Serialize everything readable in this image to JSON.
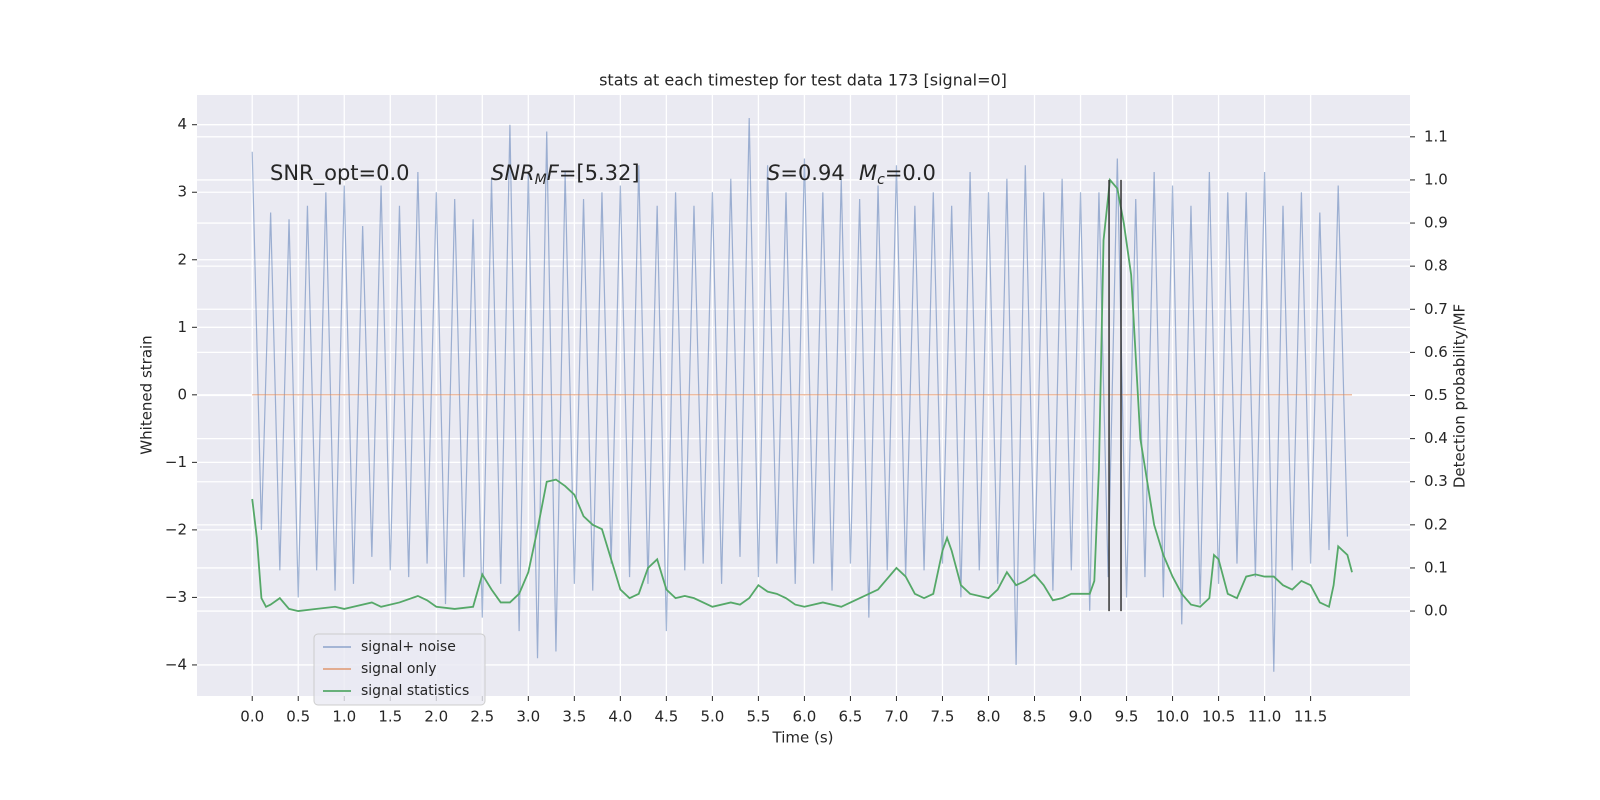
{
  "chart_data": {
    "type": "line",
    "title": "stats at each timestep for test data 173 [signal=0]",
    "xlabel": "Time (s)",
    "ylabel": "Whitened strain",
    "y2label": "Detection probability/MF",
    "xlim": [
      -0.6,
      12.58
    ],
    "ylim": [
      -4.46,
      4.44
    ],
    "y2lim": [
      -0.197,
      1.197
    ],
    "xticks": [
      {
        "value": 0,
        "label": "0.0"
      },
      0.5,
      {
        "value": 1,
        "label": "1.0"
      },
      1.5,
      {
        "value": 2,
        "label": "2.0"
      },
      2.5,
      {
        "value": 3,
        "label": "3.0"
      },
      3.5,
      {
        "value": 4,
        "label": "4.0"
      },
      4.5,
      {
        "value": 5,
        "label": "5.0"
      },
      5.5,
      {
        "value": 6,
        "label": "6.0"
      },
      6.5,
      {
        "value": 7,
        "label": "7.0"
      },
      7.5,
      {
        "value": 8,
        "label": "8.0"
      },
      8.5,
      {
        "value": 9,
        "label": "9.0"
      },
      9.5,
      {
        "value": 10,
        "label": "10.0"
      },
      10.5,
      {
        "value": 11,
        "label": "11.0"
      },
      11.5
    ],
    "yticks": [
      {
        "value": -4,
        "label": "−4"
      },
      {
        "value": -3,
        "label": "−3"
      },
      {
        "value": -2,
        "label": "−2"
      },
      {
        "value": -1,
        "label": "−1"
      },
      0,
      1,
      2,
      3,
      4
    ],
    "y2ticks": [
      {
        "value": 0,
        "label": "0.0"
      },
      0.1,
      0.2,
      0.3,
      0.4,
      0.5,
      0.6,
      0.7,
      0.8,
      0.9,
      {
        "value": 1,
        "label": "1.0"
      },
      1.1
    ],
    "grid": true,
    "legend": "lower left",
    "annotations": [
      [
        {
          "text": "SNR_opt=0.0"
        }
      ],
      [
        {
          "text": "SNR",
          "italic": true
        },
        {
          "text": "M",
          "italic": true,
          "sub": true
        },
        {
          "text": "F",
          "italic": true
        },
        {
          "text": "=[5.32]"
        }
      ],
      [
        {
          "text": "S",
          "italic": true
        },
        {
          "text": "=0.94"
        }
      ],
      [
        {
          "text": "M",
          "italic": true
        },
        {
          "text": "c",
          "italic": true,
          "sub": true
        },
        {
          "text": "=0.0"
        }
      ]
    ],
    "series": [
      {
        "name": "signal+ noise",
        "color": "#4c72b0",
        "opacity": 0.5,
        "x": [
          0,
          0.1,
          0.2,
          0.3,
          0.4,
          0.5,
          0.6,
          0.7,
          0.8,
          0.9,
          1,
          1.1,
          1.2,
          1.3,
          1.4,
          1.5,
          1.6,
          1.7,
          1.8,
          1.9,
          2,
          2.1,
          2.2,
          2.3,
          2.4,
          2.5,
          2.6,
          2.7,
          2.8,
          2.9,
          3,
          3.1,
          3.2,
          3.3,
          3.4,
          3.5,
          3.6,
          3.7,
          3.8,
          3.9,
          4,
          4.1,
          4.2,
          4.3,
          4.4,
          4.5,
          4.6,
          4.7,
          4.8,
          4.9,
          5,
          5.1,
          5.2,
          5.3,
          5.4,
          5.5,
          5.6,
          5.7,
          5.8,
          5.9,
          6,
          6.1,
          6.2,
          6.3,
          6.4,
          6.5,
          6.6,
          6.7,
          6.8,
          6.9,
          7,
          7.1,
          7.2,
          7.3,
          7.4,
          7.5,
          7.6,
          7.7,
          7.8,
          7.9,
          8,
          8.1,
          8.2,
          8.3,
          8.4,
          8.5,
          8.6,
          8.7,
          8.8,
          8.9,
          9,
          9.1,
          9.2,
          9.3,
          9.4,
          9.5,
          9.6,
          9.7,
          9.8,
          9.9,
          10,
          10.1,
          10.2,
          10.3,
          10.4,
          10.5,
          10.6,
          10.7,
          10.8,
          10.9,
          11,
          11.1,
          11.2,
          11.3,
          11.4,
          11.5,
          11.6,
          11.7,
          11.8,
          11.9
        ],
        "values": [
          3.6,
          -2.0,
          2.7,
          -2.6,
          2.6,
          -3.0,
          2.8,
          -2.6,
          3.0,
          -2.9,
          3.1,
          -2.8,
          2.5,
          -2.4,
          3.1,
          -2.6,
          2.8,
          -2.7,
          3.3,
          -2.5,
          3.0,
          -3.1,
          2.9,
          -2.7,
          2.6,
          -3.3,
          3.2,
          -2.8,
          4.0,
          -3.5,
          3.3,
          -3.9,
          3.9,
          -3.8,
          3.3,
          -2.8,
          2.9,
          -2.9,
          3.0,
          -2.5,
          3.1,
          -2.7,
          3.4,
          -2.8,
          2.8,
          -3.5,
          3.0,
          -2.6,
          2.8,
          -2.5,
          3.0,
          -2.8,
          3.2,
          -2.4,
          4.1,
          -2.7,
          3.4,
          -2.5,
          3.0,
          -2.8,
          3.5,
          -2.5,
          3.0,
          -2.9,
          3.2,
          -2.5,
          2.9,
          -3.3,
          3.1,
          -2.6,
          3.4,
          -2.7,
          2.8,
          -2.6,
          3.0,
          -2.5,
          2.8,
          -3.0,
          3.3,
          -2.6,
          3.0,
          -2.8,
          3.2,
          -4.0,
          3.4,
          -2.7,
          3.0,
          -2.9,
          3.2,
          -2.6,
          3.0,
          -3.2,
          3.0,
          -2.7,
          3.5,
          -3.0,
          2.9,
          -2.7,
          3.3,
          -3.0,
          3.1,
          -3.4,
          2.8,
          -3.1,
          3.3,
          -2.8,
          3.0,
          -2.5,
          3.0,
          -2.7,
          3.3,
          -4.1,
          2.8,
          -2.6,
          3.0,
          -2.5,
          2.7,
          -2.3,
          3.1,
          -2.1
        ]
      },
      {
        "name": "signal only",
        "color": "#dd8452",
        "opacity": 0.7,
        "x": [
          0,
          11.95
        ],
        "values": [
          0,
          0
        ]
      },
      {
        "name": "signal statistics",
        "color": "#55a868",
        "opacity": 1,
        "axis": "y2",
        "x": [
          0,
          0.05,
          0.1,
          0.15,
          0.2,
          0.3,
          0.4,
          0.5,
          0.7,
          0.9,
          1.0,
          1.1,
          1.3,
          1.4,
          1.6,
          1.8,
          1.9,
          2.0,
          2.2,
          2.4,
          2.5,
          2.6,
          2.7,
          2.8,
          2.9,
          3.0,
          3.1,
          3.2,
          3.3,
          3.4,
          3.5,
          3.6,
          3.7,
          3.8,
          3.9,
          4.0,
          4.1,
          4.2,
          4.3,
          4.4,
          4.5,
          4.6,
          4.7,
          4.8,
          5.0,
          5.2,
          5.3,
          5.4,
          5.5,
          5.6,
          5.7,
          5.8,
          5.9,
          6.0,
          6.2,
          6.4,
          6.6,
          6.8,
          7.0,
          7.1,
          7.2,
          7.3,
          7.4,
          7.5,
          7.55,
          7.6,
          7.7,
          7.8,
          8.0,
          8.1,
          8.2,
          8.3,
          8.4,
          8.5,
          8.6,
          8.7,
          8.8,
          8.9,
          9.0,
          9.1,
          9.15,
          9.2,
          9.25,
          9.32,
          9.4,
          9.47,
          9.55,
          9.65,
          9.8,
          9.9,
          10.0,
          10.1,
          10.2,
          10.3,
          10.4,
          10.45,
          10.5,
          10.6,
          10.7,
          10.8,
          10.9,
          11.0,
          11.1,
          11.2,
          11.3,
          11.4,
          11.5,
          11.6,
          11.7,
          11.75,
          11.8,
          11.9,
          11.95
        ],
        "values": [
          0.26,
          0.17,
          0.03,
          0.01,
          0.015,
          0.03,
          0.005,
          0,
          0.005,
          0.01,
          0.005,
          0.01,
          0.02,
          0.01,
          0.02,
          0.035,
          0.025,
          0.01,
          0.005,
          0.01,
          0.085,
          0.05,
          0.02,
          0.02,
          0.04,
          0.09,
          0.19,
          0.3,
          0.305,
          0.29,
          0.27,
          0.22,
          0.2,
          0.19,
          0.12,
          0.05,
          0.03,
          0.04,
          0.1,
          0.12,
          0.05,
          0.03,
          0.035,
          0.03,
          0.01,
          0.02,
          0.015,
          0.03,
          0.06,
          0.045,
          0.04,
          0.03,
          0.015,
          0.01,
          0.02,
          0.01,
          0.03,
          0.05,
          0.1,
          0.08,
          0.04,
          0.03,
          0.04,
          0.14,
          0.17,
          0.14,
          0.06,
          0.04,
          0.03,
          0.05,
          0.09,
          0.06,
          0.07,
          0.085,
          0.06,
          0.025,
          0.03,
          0.04,
          0.04,
          0.04,
          0.07,
          0.33,
          0.86,
          1.0,
          0.98,
          0.9,
          0.78,
          0.4,
          0.2,
          0.13,
          0.08,
          0.04,
          0.015,
          0.01,
          0.03,
          0.13,
          0.12,
          0.04,
          0.03,
          0.08,
          0.085,
          0.08,
          0.08,
          0.06,
          0.05,
          0.07,
          0.06,
          0.02,
          0.01,
          0.06,
          0.15,
          0.13,
          0.09
        ]
      }
    ],
    "vlines": {
      "x": [
        9.31,
        9.44
      ],
      "ymin": 0,
      "ymax": 1.0,
      "color": "#333333",
      "axis": "y2"
    }
  }
}
